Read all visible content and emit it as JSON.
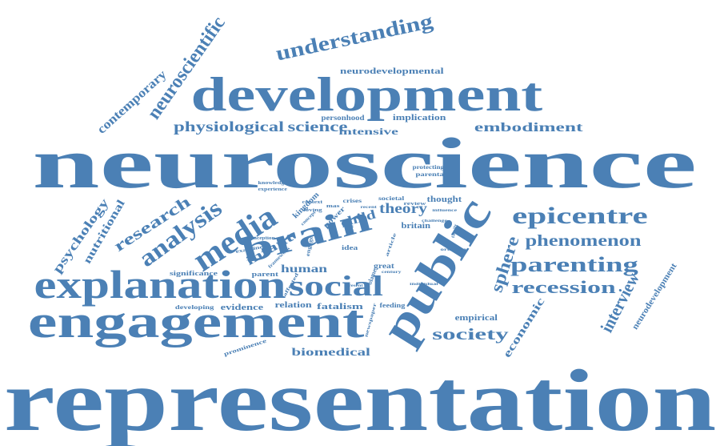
{
  "word_color": "#4b80b5",
  "words": [
    "representation",
    "neuroscience",
    "development",
    "engagement",
    "public",
    "explanation",
    "brain",
    "media",
    "social",
    "epicentre",
    "analysis",
    "understanding",
    "neuroscientific",
    "research",
    "parenting",
    "recession",
    "interview",
    "phenomenon",
    "sphere",
    "society",
    "physiological",
    "science",
    "embodiment",
    "contemporary",
    "psychology",
    "nutritional",
    "infant",
    "theory",
    "child",
    "human",
    "economic",
    "neurodevelopment",
    "biomedical",
    "neurodevelopmental",
    "intensive",
    "implication",
    "personhood",
    "protecting",
    "parental",
    "thought",
    "kingdom",
    "britain",
    "fatalism",
    "evidence",
    "relation",
    "empirical",
    "significance",
    "parent",
    "developing",
    "prominence",
    "power",
    "great",
    "idea",
    "blame",
    "feeding",
    "engage",
    "knowledge",
    "experience",
    "context",
    "societal",
    "review",
    "mas",
    "crises",
    "examine",
    "conception",
    "framework",
    "affected",
    "newspaper",
    "article",
    "ordinary",
    "individual",
    "challenge",
    "influence",
    "family",
    "recent",
    "century",
    "present",
    "loving",
    "concept",
    "risk"
  ]
}
